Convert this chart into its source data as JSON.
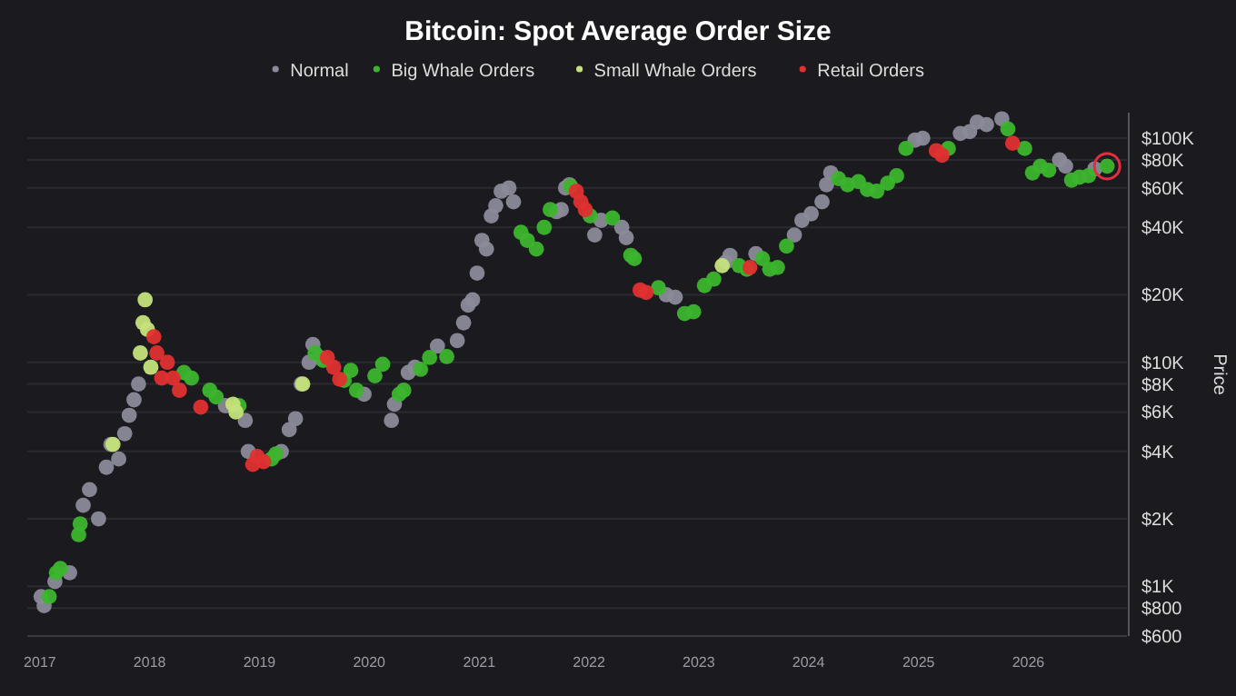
{
  "chart_data": {
    "type": "scatter",
    "title": "Bitcoin: Spot Average Order Size",
    "ylabel": "Price",
    "log": "y",
    "grid": "y",
    "legend": "top",
    "marker": "circle",
    "xlim": [
      "2016-11-20",
      "2026-11-25"
    ],
    "xticks": [
      {
        "value": "2017",
        "label": "2017"
      },
      {
        "value": "2018",
        "label": "2018"
      },
      {
        "value": "2019",
        "label": "2019"
      },
      {
        "value": "2020",
        "label": "2020"
      },
      {
        "value": "2021",
        "label": "2021"
      },
      {
        "value": "2022",
        "label": "2022"
      },
      {
        "value": "2023",
        "label": "2023"
      },
      {
        "value": "2024",
        "label": "2024"
      },
      {
        "value": "2025",
        "label": "2025"
      },
      {
        "value": "2026",
        "label": "2026"
      }
    ],
    "ylim": [
      600,
      130000
    ],
    "yticks": [
      {
        "value": 600,
        "label": "$600"
      },
      {
        "value": 800,
        "label": "$800"
      },
      {
        "value": 1000,
        "label": "$1K"
      },
      {
        "value": 2000,
        "label": "$2K"
      },
      {
        "value": 4000,
        "label": "$4K"
      },
      {
        "value": 6000,
        "label": "$6K"
      },
      {
        "value": 8000,
        "label": "$8K"
      },
      {
        "value": 10000,
        "label": "$10K"
      },
      {
        "value": 20000,
        "label": "$20K"
      },
      {
        "value": 40000,
        "label": "$40K"
      },
      {
        "value": 60000,
        "label": "$60K"
      },
      {
        "value": 80000,
        "label": "$80K"
      },
      {
        "value": 100000,
        "label": "$100K"
      }
    ],
    "series": [
      {
        "name": "Normal",
        "color": "#8a8a99",
        "x": [
          "2017-01-05",
          "2017-01-15",
          "2017-02-20",
          "2017-04-10",
          "2017-05-25",
          "2017-06-15",
          "2017-07-15",
          "2017-08-10",
          "2017-08-25",
          "2017-09-20",
          "2017-10-10",
          "2017-10-25",
          "2017-11-10",
          "2017-11-25",
          "2018-09-10",
          "2018-11-15",
          "2018-11-25",
          "2019-03-15",
          "2019-04-10",
          "2019-05-01",
          "2019-05-20",
          "2019-06-15",
          "2019-06-28",
          "2019-07-20",
          "2019-12-15",
          "2020-03-15",
          "2020-03-25",
          "2020-05-10",
          "2020-06-01",
          "2020-08-15",
          "2020-10-20",
          "2020-11-10",
          "2020-11-25",
          "2020-12-10",
          "2020-12-25",
          "2021-01-10",
          "2021-01-25",
          "2021-02-10",
          "2021-02-25",
          "2021-03-15",
          "2021-04-10",
          "2021-04-25",
          "2021-09-15",
          "2021-10-01",
          "2021-10-15",
          "2021-10-28",
          "2022-01-20",
          "2022-02-10",
          "2022-04-20",
          "2022-05-05",
          "2022-09-15",
          "2022-10-15",
          "2023-04-01",
          "2023-04-15",
          "2023-07-10",
          "2023-11-15",
          "2023-12-10",
          "2024-01-10",
          "2024-02-15",
          "2024-03-01",
          "2024-03-15",
          "2024-12-20",
          "2025-01-15",
          "2025-05-20",
          "2025-06-20",
          "2025-07-15",
          "2025-08-15",
          "2025-10-05",
          "2026-04-15",
          "2026-05-05",
          "2026-08-10"
        ],
        "values": [
          900,
          820,
          1050,
          1150,
          2300,
          2700,
          2000,
          3400,
          4300,
          3700,
          4800,
          5800,
          6800,
          8000,
          6400,
          5500,
          4000,
          4000,
          5000,
          5600,
          8000,
          10000,
          12000,
          10500,
          7200,
          5500,
          6500,
          9000,
          9500,
          11800,
          12500,
          15000,
          18000,
          19000,
          25000,
          35000,
          32000,
          45000,
          50000,
          58000,
          60000,
          52000,
          47000,
          48000,
          60000,
          62000,
          37000,
          43000,
          40000,
          36000,
          20000,
          19500,
          28000,
          30000,
          30500,
          37000,
          43000,
          46000,
          52000,
          62000,
          70000,
          98000,
          100000,
          105000,
          107000,
          118000,
          115000,
          122000,
          80000,
          75000,
          73000
        ]
      },
      {
        "name": "Big Whale Orders",
        "color": "#3cb52e",
        "x": [
          "2017-02-01",
          "2017-02-25",
          "2017-03-10",
          "2017-05-10",
          "2017-05-15",
          "2018-04-25",
          "2018-05-20",
          "2018-07-20",
          "2018-08-10",
          "2018-10-25",
          "2019-02-10",
          "2019-02-25",
          "2019-07-05",
          "2019-08-01",
          "2019-10-10",
          "2019-11-01",
          "2019-11-20",
          "2020-01-20",
          "2020-02-15",
          "2020-04-10",
          "2020-04-25",
          "2020-06-20",
          "2020-07-20",
          "2020-09-15",
          "2021-05-20",
          "2021-06-10",
          "2021-07-10",
          "2021-08-05",
          "2021-08-25",
          "2021-11-01",
          "2022-01-05",
          "2022-03-20",
          "2022-05-20",
          "2022-06-01",
          "2022-08-20",
          "2022-11-15",
          "2022-12-15",
          "2023-01-20",
          "2023-02-20",
          "2023-05-15",
          "2023-06-10",
          "2023-08-01",
          "2023-08-25",
          "2023-09-20",
          "2023-10-20",
          "2024-04-10",
          "2024-05-10",
          "2024-06-15",
          "2024-07-15",
          "2024-08-15",
          "2024-09-20",
          "2024-10-20",
          "2024-11-20",
          "2025-04-10",
          "2025-10-25",
          "2025-12-20",
          "2026-01-15",
          "2026-02-10",
          "2026-03-10",
          "2026-05-25",
          "2026-06-20",
          "2026-07-20",
          "2026-09-20"
        ],
        "values": [
          900,
          1150,
          1200,
          1700,
          1900,
          9000,
          8500,
          7500,
          7000,
          6400,
          3700,
          3900,
          11000,
          10200,
          8300,
          9200,
          7500,
          8700,
          9800,
          7200,
          7500,
          9300,
          10500,
          10600,
          38000,
          35000,
          32000,
          40000,
          48000,
          61000,
          45000,
          44000,
          30000,
          29000,
          21500,
          16500,
          16800,
          22000,
          23500,
          27000,
          26000,
          29000,
          26000,
          26500,
          33000,
          66000,
          62000,
          64000,
          59000,
          58000,
          63000,
          68000,
          90000,
          90000,
          110000,
          90000,
          70000,
          75000,
          72000,
          65000,
          67000,
          68000,
          75000
        ]
      },
      {
        "name": "Small Whale Orders",
        "color": "#c5e17a",
        "x": [
          "2017-09-01",
          "2017-12-01",
          "2017-12-10",
          "2017-12-17",
          "2017-12-25",
          "2018-01-05",
          "2018-10-05",
          "2018-10-15",
          "2019-05-25",
          "2023-03-20"
        ],
        "values": [
          4300,
          11000,
          15000,
          19000,
          14000,
          9500,
          6500,
          6000,
          8000,
          27000
        ]
      },
      {
        "name": "Retail Orders",
        "color": "#e03030",
        "x": [
          "2018-01-15",
          "2018-01-25",
          "2018-02-10",
          "2018-03-01",
          "2018-03-20",
          "2018-04-10",
          "2018-06-20",
          "2018-12-10",
          "2018-12-25",
          "2019-01-15",
          "2019-08-15",
          "2019-09-05",
          "2019-09-25",
          "2021-11-20",
          "2021-12-05",
          "2021-12-20",
          "2022-06-20",
          "2022-07-10",
          "2023-06-20",
          "2025-03-01",
          "2025-03-20",
          "2025-11-10"
        ],
        "values": [
          13000,
          11000,
          8500,
          10000,
          8500,
          7500,
          6300,
          3500,
          3800,
          3600,
          10500,
          9500,
          8400,
          58000,
          52000,
          48000,
          21000,
          20500,
          26500,
          88000,
          84000,
          95000
        ]
      }
    ]
  }
}
